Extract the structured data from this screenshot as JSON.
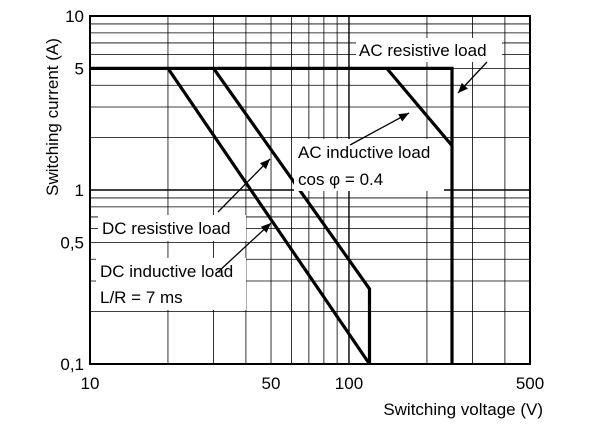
{
  "chart_data": {
    "type": "line",
    "xscale": "log",
    "yscale": "log",
    "xlim": [
      10,
      500
    ],
    "ylim": [
      0.1,
      10
    ],
    "xlabel": "Switching voltage (V)",
    "ylabel": "Switching current (A)",
    "grid": true,
    "x_tick_labels": [
      "10",
      "50",
      "100",
      "500"
    ],
    "y_tick_labels": [
      "0,1",
      "0,5",
      "1",
      "5",
      "10"
    ],
    "series": [
      {
        "name": "AC resistive load",
        "points": [
          [
            10,
            5
          ],
          [
            250,
            5
          ],
          [
            250,
            0.1
          ]
        ]
      },
      {
        "name": "AC inductive load",
        "points": [
          [
            140,
            5
          ],
          [
            250,
            1.8
          ]
        ]
      },
      {
        "name": "DC resistive load",
        "points": [
          [
            30,
            5
          ],
          [
            120,
            0.27
          ],
          [
            120,
            0.1
          ]
        ]
      },
      {
        "name": "DC inductive load",
        "points": [
          [
            20,
            5
          ],
          [
            120,
            0.1
          ]
        ]
      }
    ],
    "annotations": [
      {
        "id": "ac_res",
        "lines": [
          "AC resistive load"
        ]
      },
      {
        "id": "ac_ind",
        "lines": [
          "AC inductive load",
          "cos φ = 0.4"
        ]
      },
      {
        "id": "dc_res",
        "lines": [
          "DC resistive load"
        ]
      },
      {
        "id": "dc_ind",
        "lines": [
          "DC inductive load",
          "L/R = 7 ms"
        ]
      }
    ]
  }
}
